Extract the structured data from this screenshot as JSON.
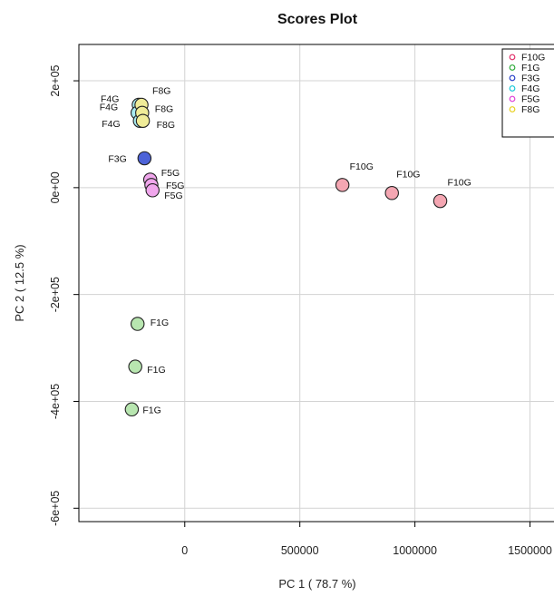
{
  "chart_data": {
    "type": "scatter",
    "title": "Scores Plot",
    "xlabel": "PC 1 ( 78.7 %)",
    "ylabel": "PC 2 ( 12.5 %)",
    "xlim": [
      -460000,
      1620000
    ],
    "ylim": [
      -625000,
      268000
    ],
    "x_ticks": [
      0,
      500000,
      1000000,
      1500000
    ],
    "x_tick_labels": [
      "0",
      "500000",
      "1000000",
      "1500000"
    ],
    "y_ticks": [
      200000,
      0,
      -200000,
      -400000,
      -600000
    ],
    "y_tick_labels": [
      "2e+05",
      "0e+00",
      "-2e+05",
      "-4e+05",
      "-6e+05"
    ],
    "grid": true,
    "legend_position": "top-right",
    "series": [
      {
        "name": "F10G",
        "edge_color": "#e0306a",
        "fill_color": "#f4a6b2",
        "points": [
          {
            "x": 685000,
            "y": 5000,
            "label": "F10G"
          },
          {
            "x": 900000,
            "y": -10000,
            "label": "F10G"
          },
          {
            "x": 1110000,
            "y": -25000,
            "label": "F10G"
          }
        ]
      },
      {
        "name": "F1G",
        "edge_color": "#2eaa3a",
        "fill_color": "#b8e6b0",
        "points": [
          {
            "x": -205000,
            "y": -255000,
            "label": "F1G"
          },
          {
            "x": -215000,
            "y": -335000,
            "label": "F1G"
          },
          {
            "x": -230000,
            "y": -415000,
            "label": "F1G"
          }
        ]
      },
      {
        "name": "F3G",
        "edge_color": "#2840c8",
        "fill_color": "#4d63d8",
        "points": [
          {
            "x": -175000,
            "y": 55000,
            "label": "F3G"
          }
        ]
      },
      {
        "name": "F4G",
        "edge_color": "#18c8d8",
        "fill_color": "#a8eaf0",
        "points": [
          {
            "x": -200000,
            "y": 155000,
            "label": "F4G"
          },
          {
            "x": -205000,
            "y": 140000,
            "label": "F4G"
          },
          {
            "x": -195000,
            "y": 125000,
            "label": "F4G"
          }
        ]
      },
      {
        "name": "F5G",
        "edge_color": "#e040d8",
        "fill_color": "#f0a6ec",
        "points": [
          {
            "x": -150000,
            "y": 15000,
            "label": "F5G"
          },
          {
            "x": -145000,
            "y": 5000,
            "label": "F5G"
          },
          {
            "x": -140000,
            "y": -5000,
            "label": "F5G"
          }
        ]
      },
      {
        "name": "F8G",
        "edge_color": "#e8d020",
        "fill_color": "#f0ec98",
        "points": [
          {
            "x": -188000,
            "y": 155000,
            "label": "F8G"
          },
          {
            "x": -185000,
            "y": 140000,
            "label": "F8G"
          },
          {
            "x": -182000,
            "y": 125000,
            "label": "F8G"
          }
        ]
      }
    ],
    "label_color": "#111111",
    "point_edge_color": "#222222"
  }
}
